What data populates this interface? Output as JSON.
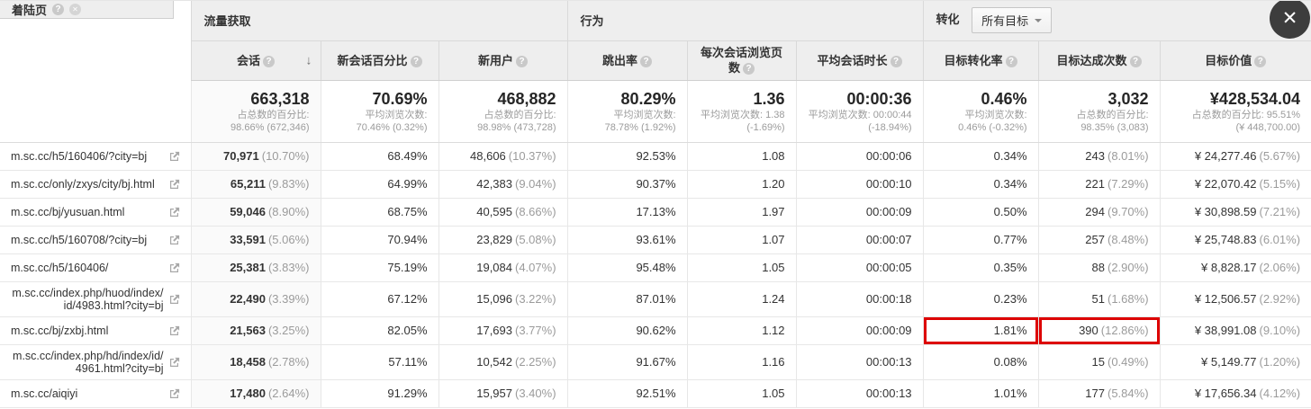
{
  "colors": {
    "highlight_red": "#dd0000",
    "header_bg": "#eeeeee",
    "muted_text": "#999999",
    "close_button_bg": "#3d3d3d"
  },
  "header": {
    "landing_page_label": "着陆页",
    "groups": [
      {
        "label": "流量获取"
      },
      {
        "label": "行为"
      },
      {
        "label": "转化",
        "dropdown_value": "所有目标"
      }
    ],
    "columns": [
      {
        "key": "sessions",
        "label": "会话",
        "sorted": "desc"
      },
      {
        "key": "new-session-pct",
        "label": "新会话百分比"
      },
      {
        "key": "new-users",
        "label": "新用户"
      },
      {
        "key": "bounce-rate",
        "label": "跳出率"
      },
      {
        "key": "pages-per-session",
        "label": "每次会话浏览页数"
      },
      {
        "key": "avg-session-duration",
        "label": "平均会话时长"
      },
      {
        "key": "goal-conversion-rate",
        "label": "目标转化率"
      },
      {
        "key": "goal-completions",
        "label": "目标达成次数"
      },
      {
        "key": "goal-value",
        "label": "目标价值"
      }
    ]
  },
  "summary": {
    "cells": [
      {
        "big": "663,318",
        "sub1": "占总数的百分比:",
        "sub2": "98.66% (672,346)"
      },
      {
        "big": "70.69%",
        "sub1": "平均浏览次数:",
        "sub2": "70.46% (0.32%)"
      },
      {
        "big": "468,882",
        "sub1": "占总数的百分比:",
        "sub2": "98.98% (473,728)"
      },
      {
        "big": "80.29%",
        "sub1": "平均浏览次数:",
        "sub2": "78.78% (1.92%)"
      },
      {
        "big": "1.36",
        "sub1": "平均浏览次数: 1.38",
        "sub2": "(-1.69%)"
      },
      {
        "big": "00:00:36",
        "sub1": "平均浏览次数: 00:00:44",
        "sub2": "(-18.94%)"
      },
      {
        "big": "0.46%",
        "sub1": "平均浏览次数:",
        "sub2": "0.46% (-0.32%)"
      },
      {
        "big": "3,032",
        "sub1": "占总数的百分比:",
        "sub2": "98.35% (3,083)"
      },
      {
        "big": "¥428,534.04",
        "sub1": "占总数的百分比: 95.51%",
        "sub2": "(¥ 448,700.00)"
      }
    ]
  },
  "rows": [
    {
      "url": "m.sc.cc/h5/160406/?city=bj",
      "cells": [
        {
          "v": "70,971",
          "p": "(10.70%)"
        },
        {
          "v": "68.49%"
        },
        {
          "v": "48,606",
          "p": "(10.37%)"
        },
        {
          "v": "92.53%"
        },
        {
          "v": "1.08"
        },
        {
          "v": "00:00:06"
        },
        {
          "v": "0.34%"
        },
        {
          "v": "243",
          "p": "(8.01%)"
        },
        {
          "v": "¥ 24,277.46",
          "p": "(5.67%)"
        }
      ]
    },
    {
      "url": "m.sc.cc/only/zxys/city/bj.html",
      "cells": [
        {
          "v": "65,211",
          "p": "(9.83%)"
        },
        {
          "v": "64.99%"
        },
        {
          "v": "42,383",
          "p": "(9.04%)"
        },
        {
          "v": "90.37%"
        },
        {
          "v": "1.20"
        },
        {
          "v": "00:00:10"
        },
        {
          "v": "0.34%"
        },
        {
          "v": "221",
          "p": "(7.29%)"
        },
        {
          "v": "¥ 22,070.42",
          "p": "(5.15%)"
        }
      ]
    },
    {
      "url": "m.sc.cc/bj/yusuan.html",
      "cells": [
        {
          "v": "59,046",
          "p": "(8.90%)"
        },
        {
          "v": "68.75%"
        },
        {
          "v": "40,595",
          "p": "(8.66%)"
        },
        {
          "v": "17.13%"
        },
        {
          "v": "1.97"
        },
        {
          "v": "00:00:09"
        },
        {
          "v": "0.50%"
        },
        {
          "v": "294",
          "p": "(9.70%)"
        },
        {
          "v": "¥ 30,898.59",
          "p": "(7.21%)"
        }
      ]
    },
    {
      "url": "m.sc.cc/h5/160708/?city=bj",
      "cells": [
        {
          "v": "33,591",
          "p": "(5.06%)"
        },
        {
          "v": "70.94%"
        },
        {
          "v": "23,829",
          "p": "(5.08%)"
        },
        {
          "v": "93.61%"
        },
        {
          "v": "1.07"
        },
        {
          "v": "00:00:07"
        },
        {
          "v": "0.77%"
        },
        {
          "v": "257",
          "p": "(8.48%)"
        },
        {
          "v": "¥ 25,748.83",
          "p": "(6.01%)"
        }
      ]
    },
    {
      "url": "m.sc.cc/h5/160406/",
      "cells": [
        {
          "v": "25,381",
          "p": "(3.83%)"
        },
        {
          "v": "75.19%"
        },
        {
          "v": "19,084",
          "p": "(4.07%)"
        },
        {
          "v": "95.48%"
        },
        {
          "v": "1.05"
        },
        {
          "v": "00:00:05"
        },
        {
          "v": "0.35%"
        },
        {
          "v": "88",
          "p": "(2.90%)"
        },
        {
          "v": "¥ 8,828.17",
          "p": "(2.06%)"
        }
      ]
    },
    {
      "url": "m.sc.cc/index.php/huod/index/id/4983.html?city=bj",
      "cells": [
        {
          "v": "22,490",
          "p": "(3.39%)"
        },
        {
          "v": "67.12%"
        },
        {
          "v": "15,096",
          "p": "(3.22%)"
        },
        {
          "v": "87.01%"
        },
        {
          "v": "1.24"
        },
        {
          "v": "00:00:18"
        },
        {
          "v": "0.23%"
        },
        {
          "v": "51",
          "p": "(1.68%)"
        },
        {
          "v": "¥ 12,506.57",
          "p": "(2.92%)"
        }
      ]
    },
    {
      "url": "m.sc.cc/bj/zxbj.html",
      "highlight_cells": [
        6,
        7
      ],
      "cells": [
        {
          "v": "21,563",
          "p": "(3.25%)"
        },
        {
          "v": "82.05%"
        },
        {
          "v": "17,693",
          "p": "(3.77%)"
        },
        {
          "v": "90.62%"
        },
        {
          "v": "1.12"
        },
        {
          "v": "00:00:09"
        },
        {
          "v": "1.81%"
        },
        {
          "v": "390",
          "p": "(12.86%)"
        },
        {
          "v": "¥ 38,991.08",
          "p": "(9.10%)"
        }
      ]
    },
    {
      "url": "m.sc.cc/index.php/hd/index/id/4961.html?city=bj",
      "cells": [
        {
          "v": "18,458",
          "p": "(2.78%)"
        },
        {
          "v": "57.11%"
        },
        {
          "v": "10,542",
          "p": "(2.25%)"
        },
        {
          "v": "91.67%"
        },
        {
          "v": "1.16"
        },
        {
          "v": "00:00:13"
        },
        {
          "v": "0.08%"
        },
        {
          "v": "15",
          "p": "(0.49%)"
        },
        {
          "v": "¥ 5,149.77",
          "p": "(1.20%)"
        }
      ]
    },
    {
      "url": "m.sc.cc/aiqiyi",
      "cells": [
        {
          "v": "17,480",
          "p": "(2.64%)"
        },
        {
          "v": "91.29%"
        },
        {
          "v": "15,957",
          "p": "(3.40%)"
        },
        {
          "v": "92.51%"
        },
        {
          "v": "1.05"
        },
        {
          "v": "00:00:13"
        },
        {
          "v": "1.01%"
        },
        {
          "v": "177",
          "p": "(5.84%)"
        },
        {
          "v": "¥ 17,656.34",
          "p": "(4.12%)"
        }
      ]
    }
  ]
}
